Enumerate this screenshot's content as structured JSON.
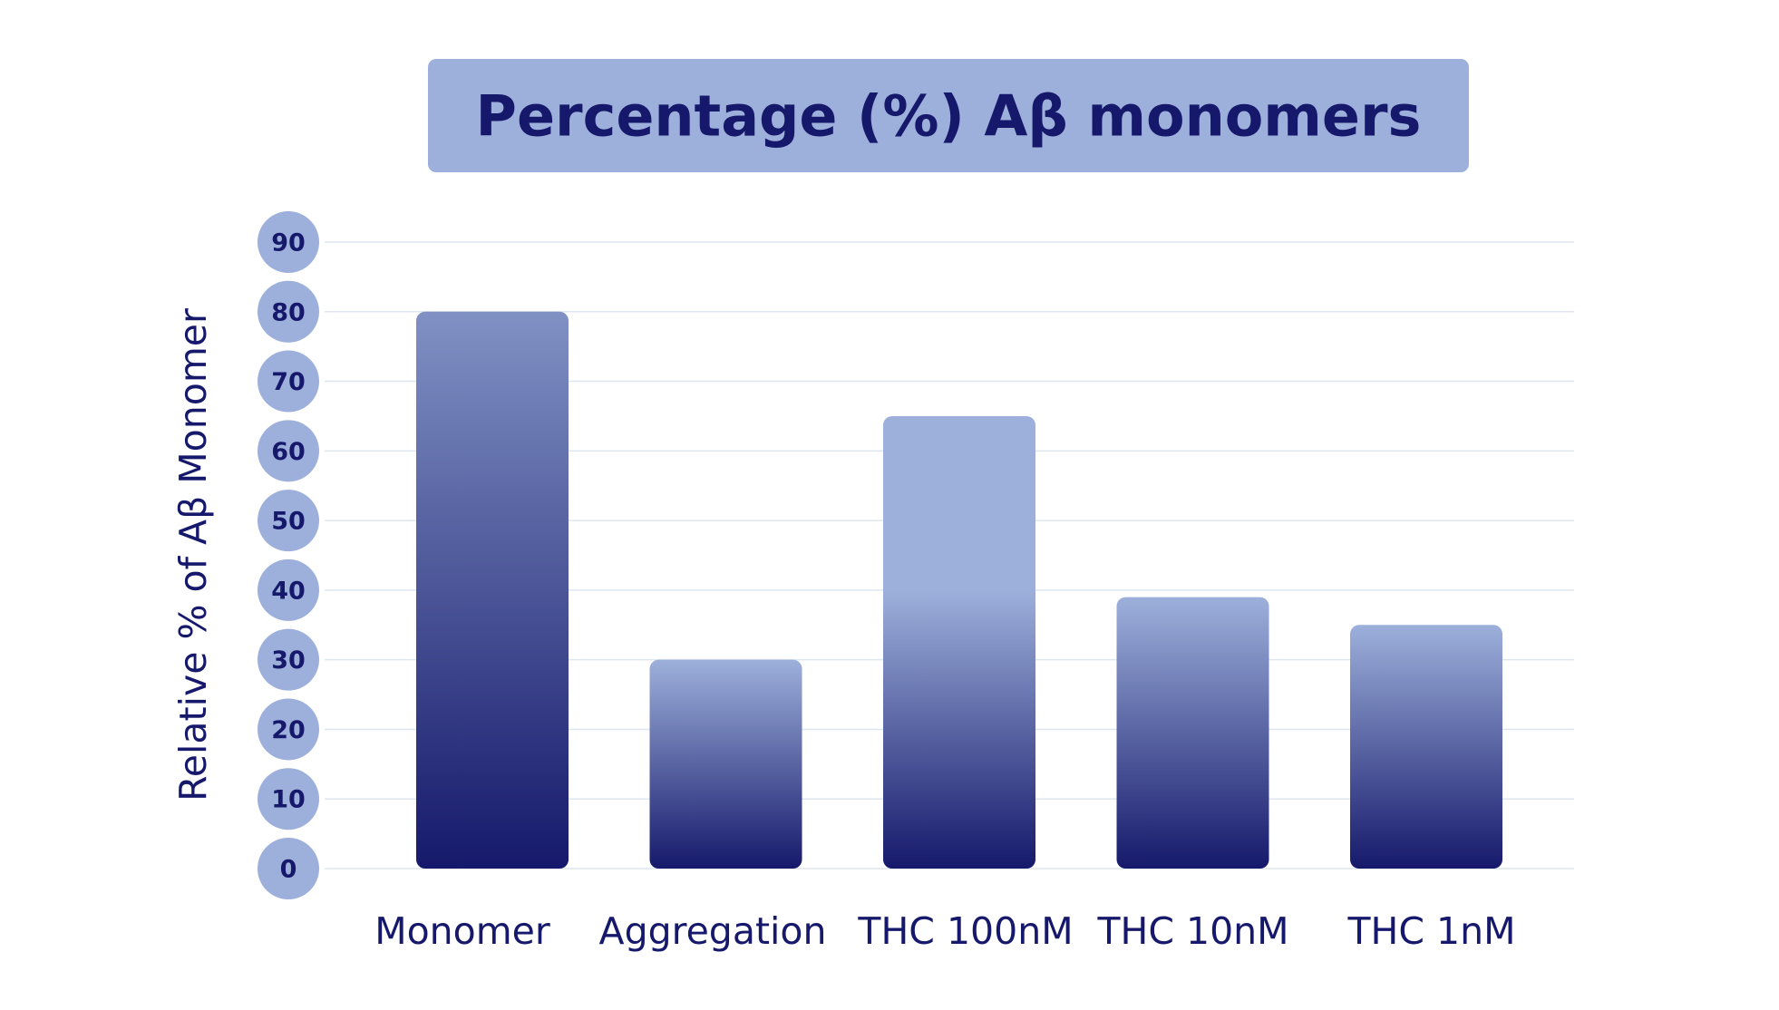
{
  "chart_data": {
    "type": "bar",
    "title": "Percentage (%) Aβ monomers",
    "ylabel": "Relative % of Aβ Monomer",
    "xlabel": "",
    "categories": [
      "Monomer",
      "Aggregation",
      "THC 100nM",
      "THC 10nM",
      "THC 1nM"
    ],
    "values": [
      80,
      30,
      65,
      39,
      35
    ],
    "ylim": [
      0,
      90
    ],
    "yticks": [
      0,
      10,
      20,
      30,
      40,
      50,
      60,
      70,
      80,
      90
    ],
    "grid": true,
    "legend": "none"
  },
  "colors": {
    "text": "#16196b",
    "title_box": "#9db0db",
    "tick_circle": "#9db0db",
    "bar_top": "#9db0db",
    "bar_bottom": "#16196b",
    "grid": "#dfe6ef"
  }
}
